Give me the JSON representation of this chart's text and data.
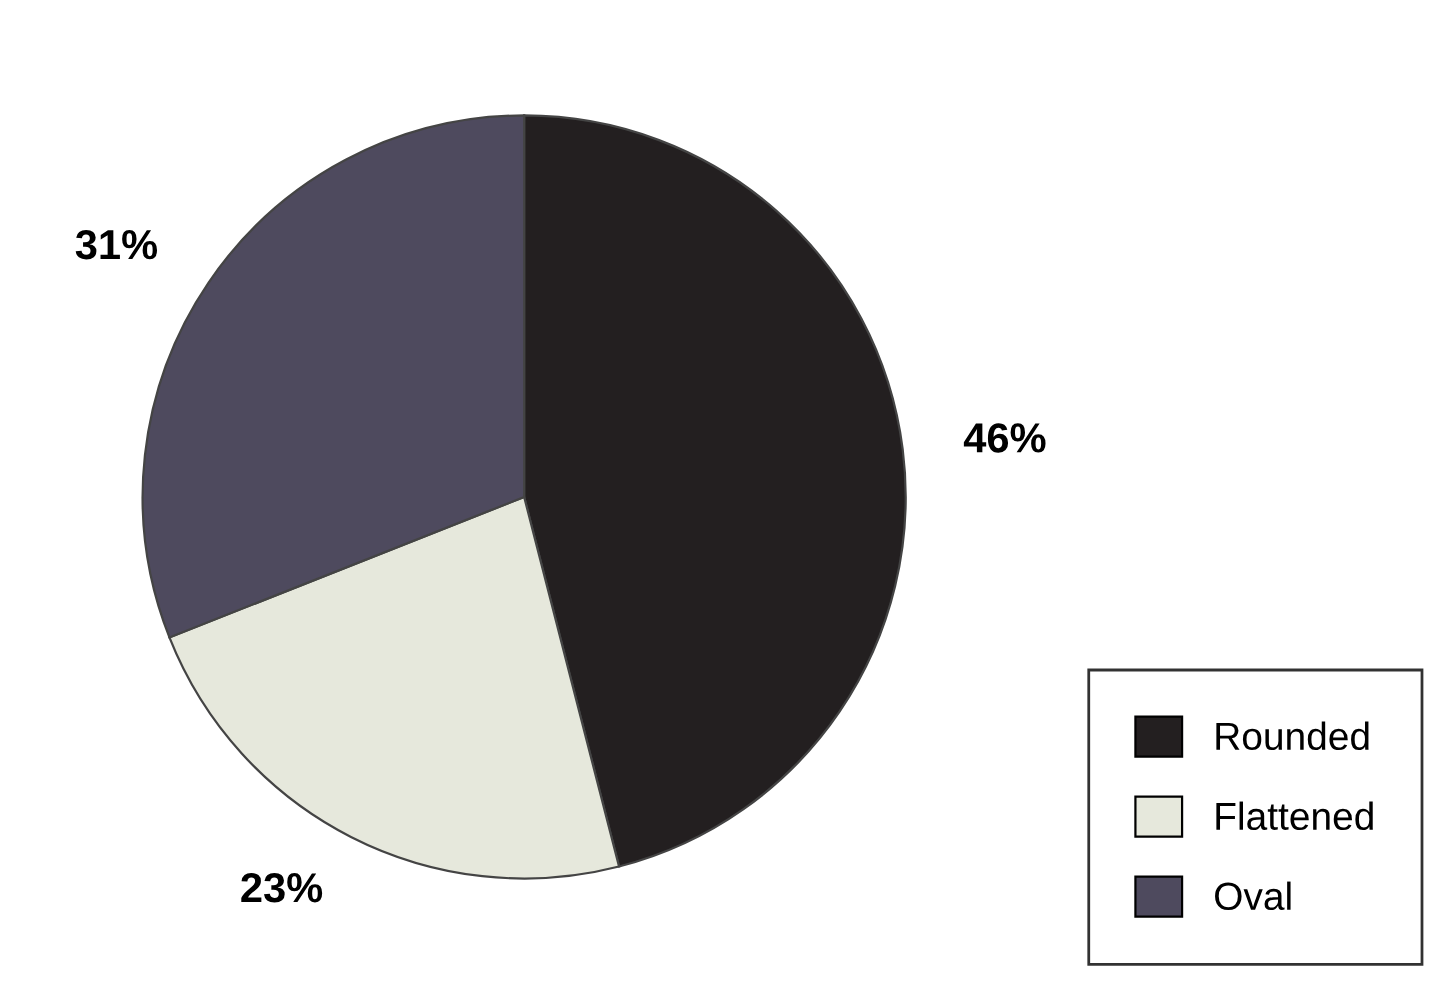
{
  "chart_data": {
    "type": "pie",
    "categories": [
      "Rounded",
      "Flattened",
      "Oval"
    ],
    "values": [
      46,
      23,
      31
    ],
    "colors": [
      "#231f20",
      "#e6e8dc",
      "#4e4a5e"
    ],
    "legend": "bottom right",
    "value_labels": [
      "46%",
      "23%",
      "31%"
    ]
  }
}
